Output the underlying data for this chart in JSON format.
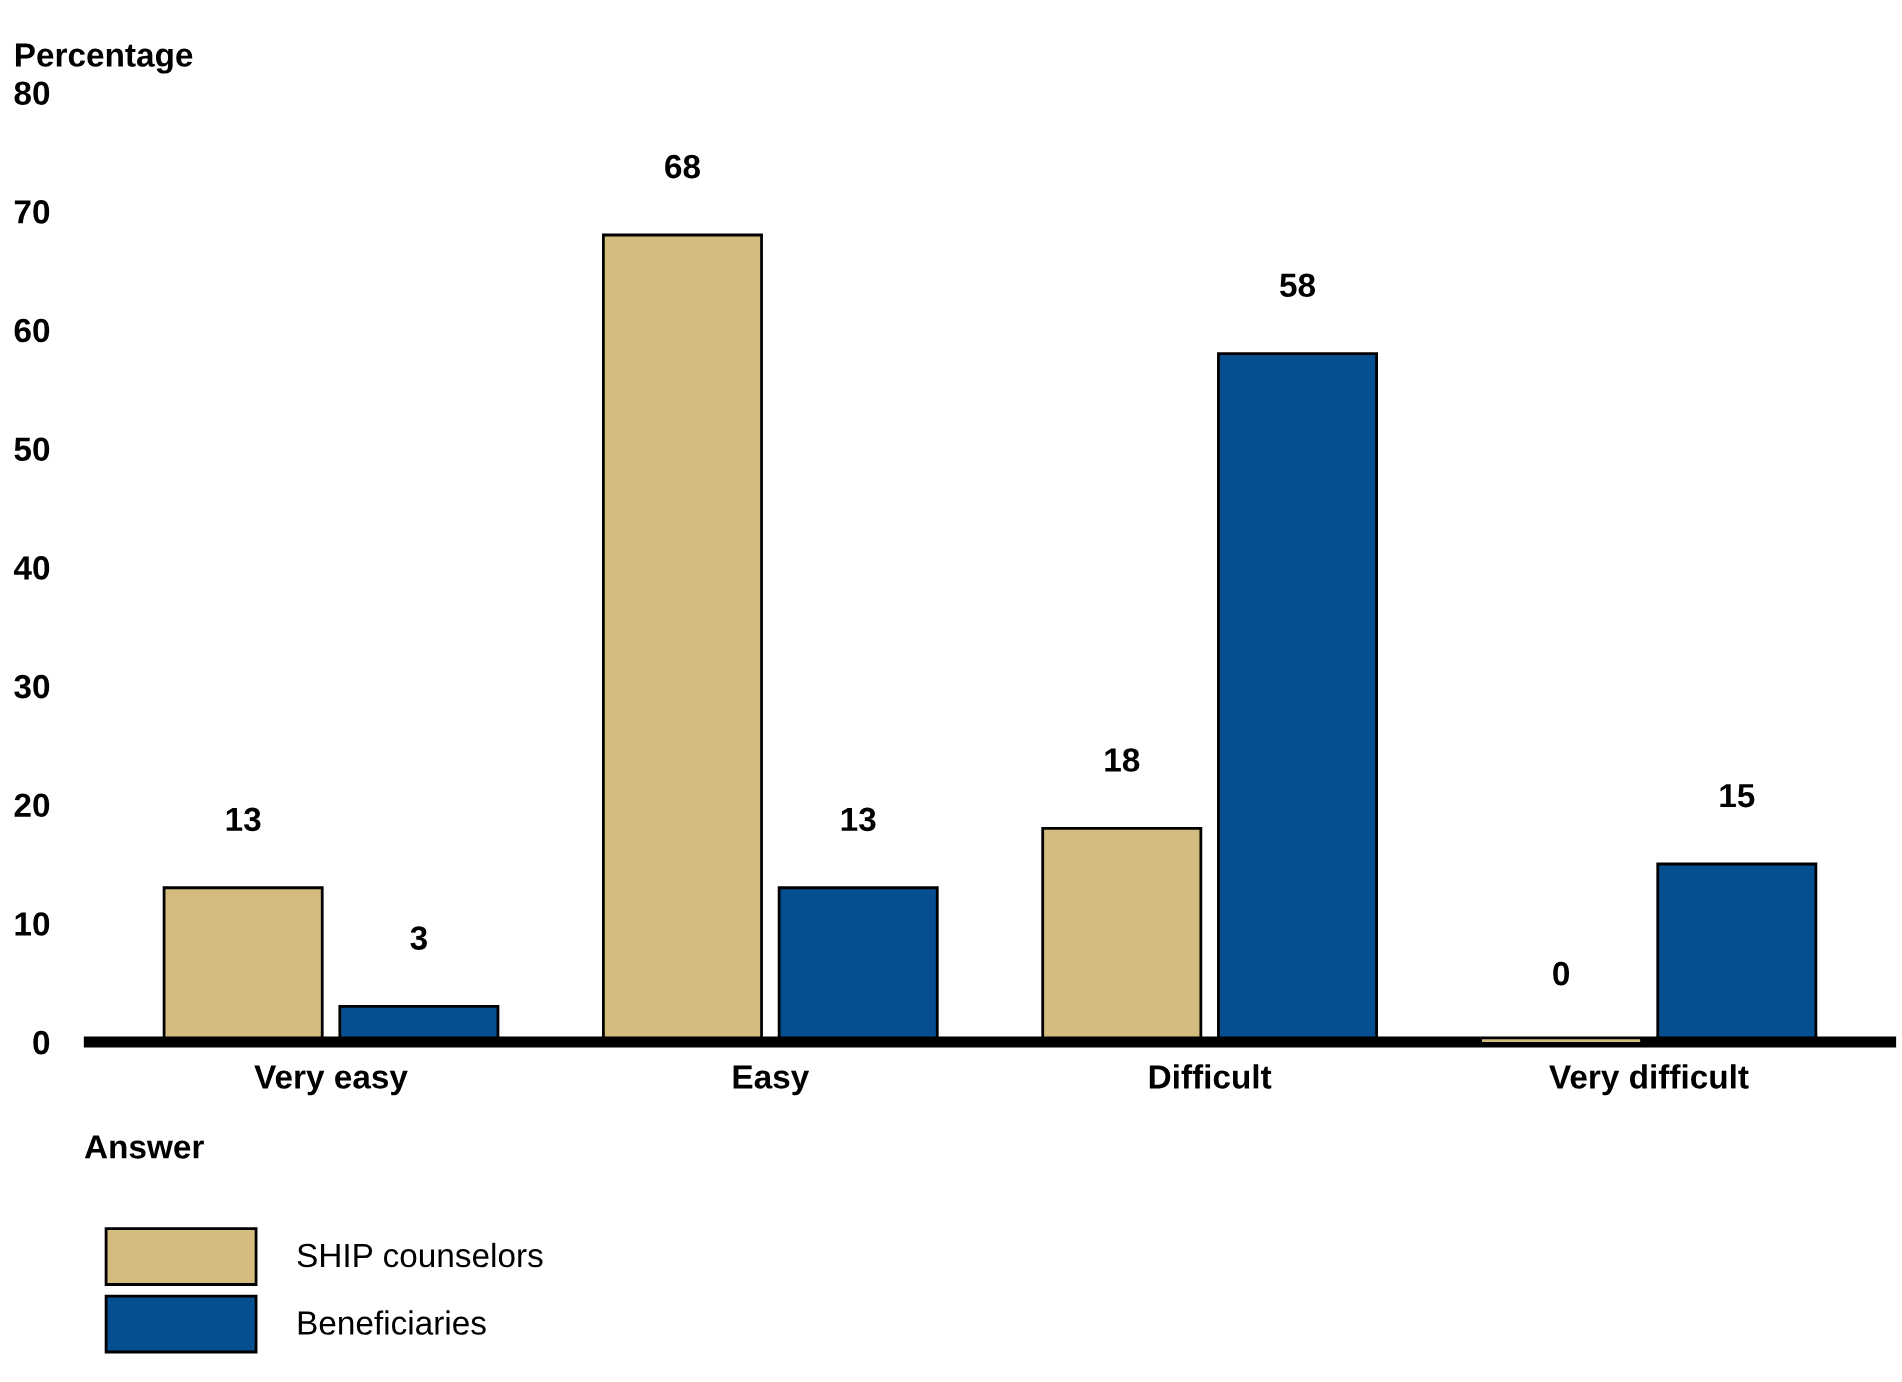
{
  "chart_data": {
    "type": "bar",
    "xlabel": "Answer",
    "ylabel": "Percentage",
    "categories": [
      "Very easy",
      "Easy",
      "Difficult",
      "Very difficult"
    ],
    "series": [
      {
        "name": "SHIP counselors",
        "color": "#d4bc7f",
        "values": [
          13,
          68,
          18,
          0
        ]
      },
      {
        "name": "Beneficiaries",
        "color": "#054f91",
        "values": [
          3,
          13,
          58,
          15
        ]
      }
    ],
    "ylim": [
      0,
      80
    ],
    "yticks": [
      0,
      10,
      20,
      30,
      40,
      50,
      60,
      70,
      80
    ],
    "data_labels": true,
    "grid": false,
    "legend": "bottom left"
  }
}
